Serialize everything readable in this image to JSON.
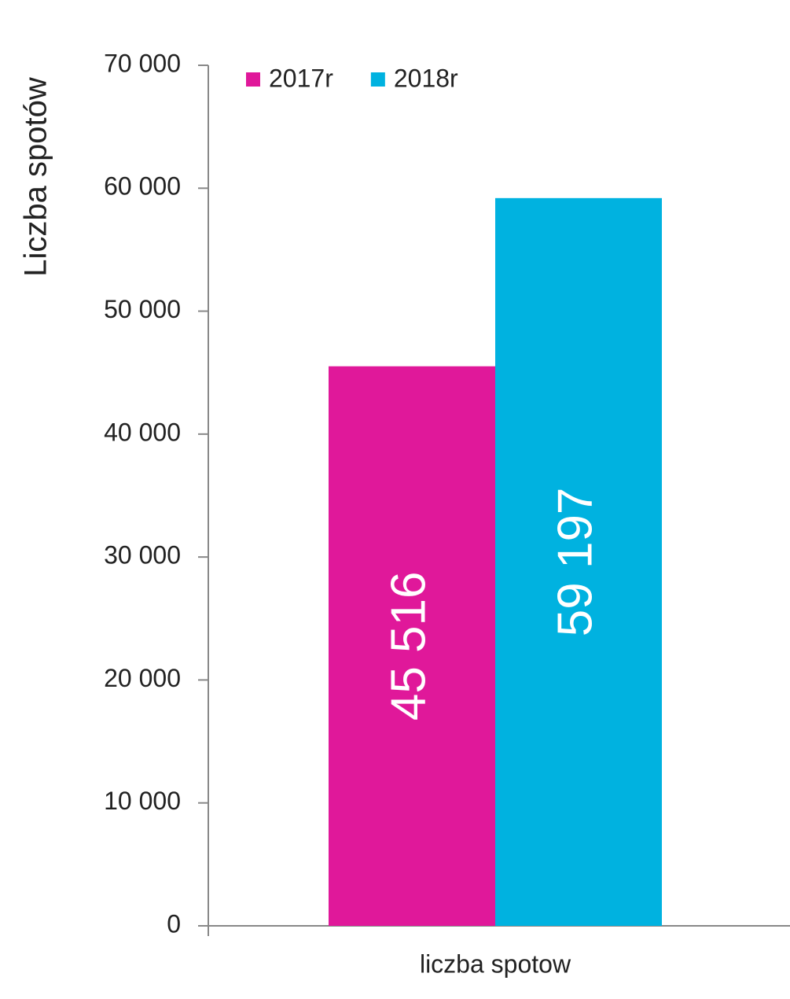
{
  "chart_data": {
    "type": "bar",
    "y_label": "Liczba spotów",
    "categories": [
      "liczba spotow"
    ],
    "series": [
      {
        "name": "2017r",
        "color": "#e0189a",
        "values": [
          45516
        ],
        "value_labels": [
          "45 516"
        ]
      },
      {
        "name": "2018r",
        "color": "#00b2e0",
        "values": [
          59197
        ],
        "value_labels": [
          "59 197"
        ]
      }
    ],
    "ylim": [
      0,
      70000
    ],
    "yticks": [
      {
        "value": 0,
        "label": "0"
      },
      {
        "value": 10000,
        "label": "10 000"
      },
      {
        "value": 20000,
        "label": "20 000"
      },
      {
        "value": 30000,
        "label": "30 000"
      },
      {
        "value": 40000,
        "label": "40 000"
      },
      {
        "value": 50000,
        "label": "50 000"
      },
      {
        "value": 60000,
        "label": "60 000"
      },
      {
        "value": 70000,
        "label": "70 000"
      }
    ],
    "grid": false,
    "legend": "top"
  }
}
